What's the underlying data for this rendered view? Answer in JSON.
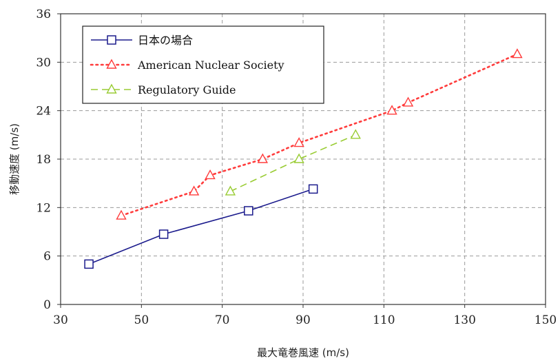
{
  "chart_data": {
    "type": "line",
    "title": "",
    "xlabel": "最大竜巻風速 (m/s)",
    "ylabel": "移動速度 (m/s)",
    "xlim": [
      30,
      150
    ],
    "ylim": [
      0,
      36
    ],
    "xticks": [
      30,
      50,
      70,
      90,
      110,
      130,
      150
    ],
    "yticks": [
      0,
      6,
      12,
      18,
      24,
      30,
      36
    ],
    "grid": true,
    "legend_position": "top-left",
    "series": [
      {
        "name": "日本の場合",
        "color": "#1a1a8c",
        "marker": "square",
        "line_style": "solid",
        "points": [
          [
            37,
            5
          ],
          [
            55.5,
            8.7
          ],
          [
            76.5,
            11.6
          ],
          [
            92.5,
            14.3
          ]
        ]
      },
      {
        "name": "American Nuclear Society",
        "color": "#ff3b3b",
        "marker": "triangle",
        "line_style": "dotted",
        "points": [
          [
            45,
            11
          ],
          [
            63,
            14
          ],
          [
            67,
            16
          ],
          [
            80,
            18
          ],
          [
            89,
            20
          ],
          [
            112,
            24
          ],
          [
            116,
            25
          ],
          [
            143,
            31
          ]
        ]
      },
      {
        "name": "Regulatory Guide",
        "color": "#99cc33",
        "marker": "triangle",
        "line_style": "dashed",
        "points": [
          [
            72,
            14
          ],
          [
            89,
            18
          ],
          [
            103,
            21
          ]
        ]
      }
    ]
  }
}
